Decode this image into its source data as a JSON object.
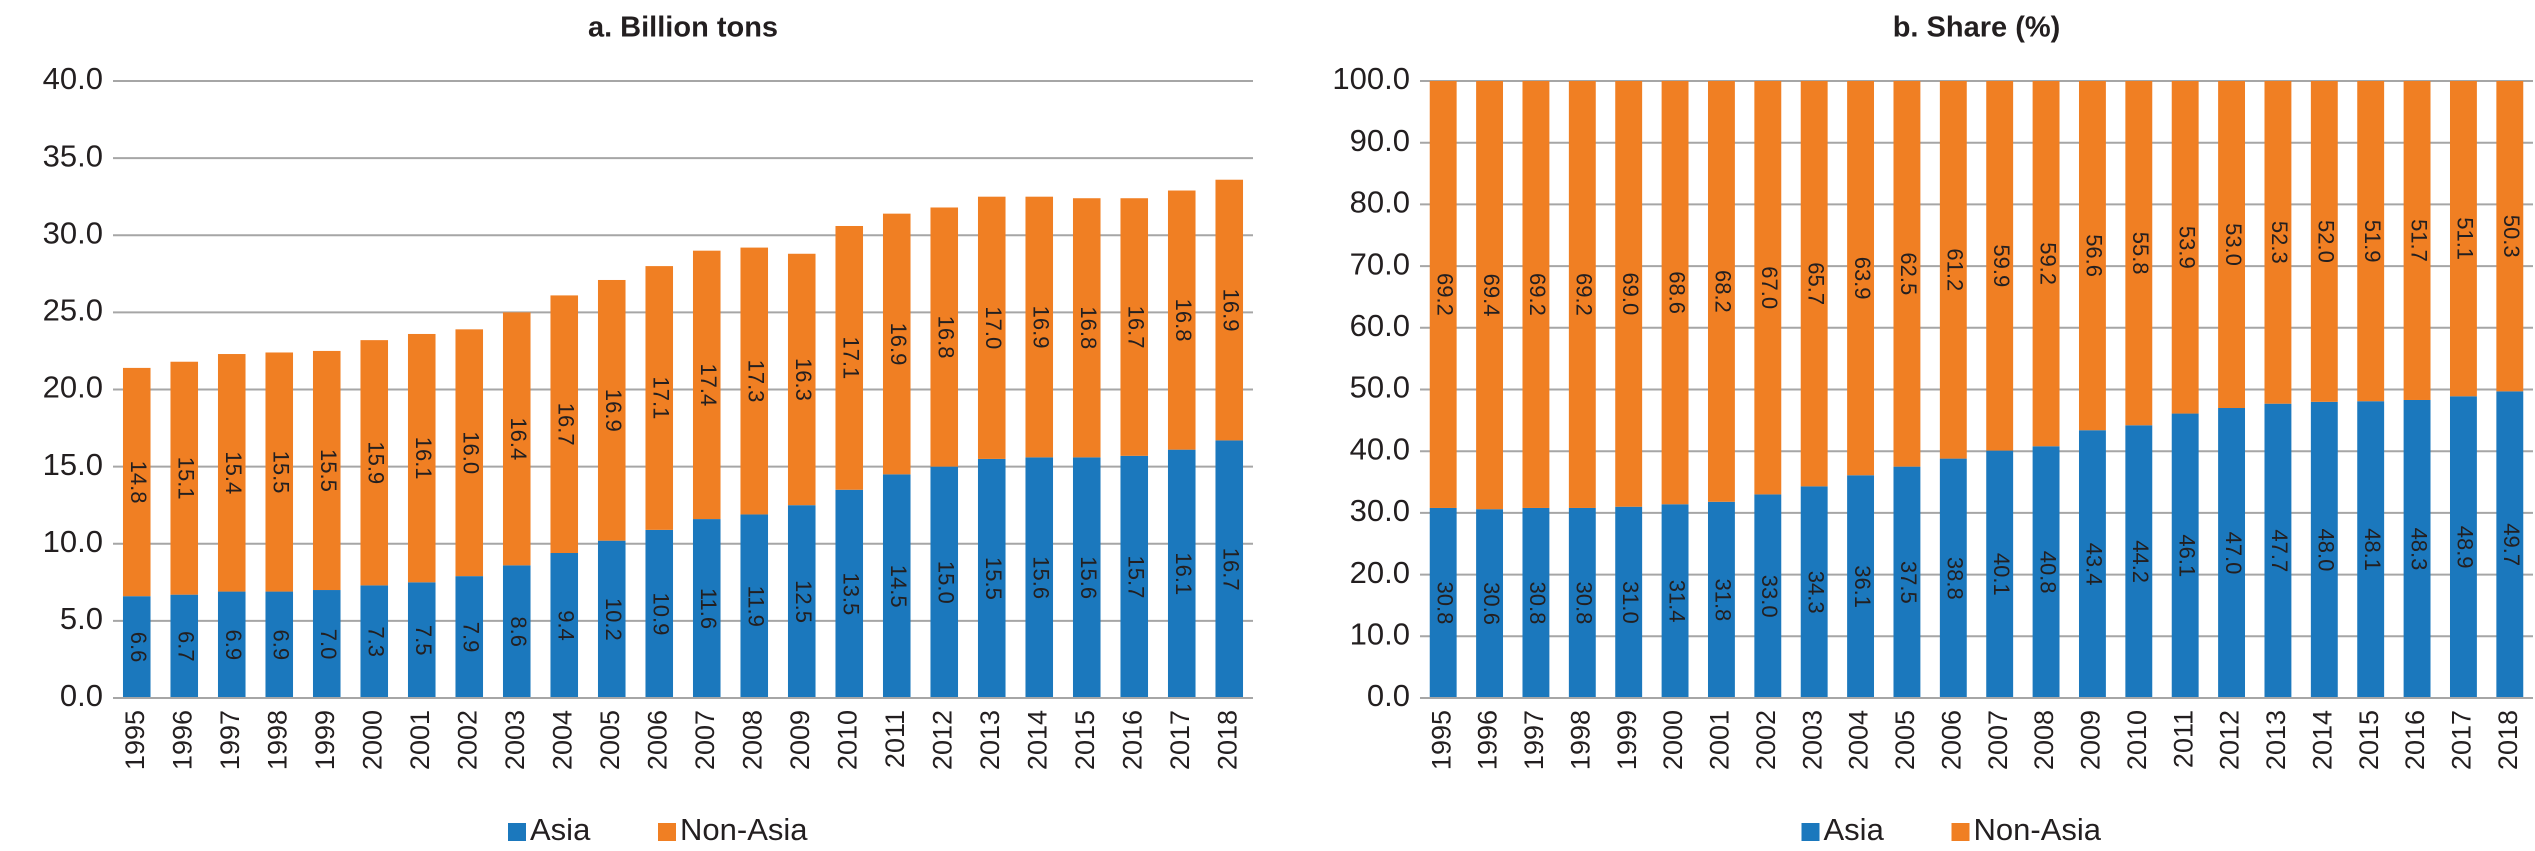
{
  "chart_data": [
    {
      "type": "stacked-bar",
      "title": "a. Billion tons",
      "categories": [
        "1995",
        "1996",
        "1997",
        "1998",
        "1999",
        "2000",
        "2001",
        "2002",
        "2003",
        "2004",
        "2005",
        "2006",
        "2007",
        "2008",
        "2009",
        "2010",
        "2011",
        "2012",
        "2013",
        "2014",
        "2015",
        "2016",
        "2017",
        "2018"
      ],
      "series": [
        {
          "name": "Asia",
          "color": "#1b78bd",
          "values": [
            6.6,
            6.7,
            6.9,
            6.9,
            7.0,
            7.3,
            7.5,
            7.9,
            8.6,
            9.4,
            10.2,
            10.9,
            11.6,
            11.9,
            12.5,
            13.5,
            14.5,
            15.0,
            15.5,
            15.6,
            15.6,
            15.7,
            16.1,
            16.7
          ],
          "value_labels": [
            "6.6",
            "6.7",
            "6.9",
            "6.9",
            "7.0",
            "7.3",
            "7.5",
            "7.9",
            "8.6",
            "9.4",
            "10.2",
            "10.9",
            "11.6",
            "11.9",
            "12.5",
            "13.5",
            "14.5",
            "15.0",
            "15.5",
            "15.6",
            "15.6",
            "15.7",
            "16.1",
            "16.7"
          ]
        },
        {
          "name": "Non-Asia",
          "color": "#f07f23",
          "values": [
            14.8,
            15.1,
            15.4,
            15.5,
            15.5,
            15.9,
            16.1,
            16.0,
            16.4,
            16.7,
            16.9,
            17.1,
            17.4,
            17.3,
            16.3,
            17.1,
            16.9,
            16.8,
            17.0,
            16.9,
            16.8,
            16.7,
            16.8,
            16.9
          ],
          "value_labels": [
            "14.8",
            "15.1",
            "15.4",
            "15.5",
            "15.5",
            "15.9",
            "16.1",
            "16.0",
            "16.4",
            "16.7",
            "16.9",
            "17.1",
            "17.4",
            "17.3",
            "16.3",
            "17.1",
            "16.9",
            "16.8",
            "17.0",
            "16.9",
            "16.8",
            "16.7",
            "16.8",
            "16.9"
          ]
        }
      ],
      "ylim": [
        0,
        40
      ],
      "yticks": [
        {
          "value": 0,
          "label": "0.0"
        },
        {
          "value": 5,
          "label": "5.0"
        },
        {
          "value": 10,
          "label": "10.0"
        },
        {
          "value": 15,
          "label": "15.0"
        },
        {
          "value": 20,
          "label": "20.0"
        },
        {
          "value": 25,
          "label": "25.0"
        },
        {
          "value": 30,
          "label": "30.0"
        },
        {
          "value": 35,
          "label": "35.0"
        },
        {
          "value": 40,
          "label": "40.0"
        }
      ],
      "grid": true,
      "legend": "bottom"
    },
    {
      "type": "stacked-bar",
      "title": "b. Share (%)",
      "categories": [
        "1995",
        "1996",
        "1997",
        "1998",
        "1999",
        "2000",
        "2001",
        "2002",
        "2003",
        "2004",
        "2005",
        "2006",
        "2007",
        "2008",
        "2009",
        "2010",
        "2011",
        "2012",
        "2013",
        "2014",
        "2015",
        "2016",
        "2017",
        "2018"
      ],
      "series": [
        {
          "name": "Asia",
          "color": "#1b78bd",
          "values": [
            30.8,
            30.6,
            30.8,
            30.8,
            31.0,
            31.4,
            31.8,
            33.0,
            34.3,
            36.1,
            37.5,
            38.8,
            40.1,
            40.8,
            43.4,
            44.2,
            46.1,
            47.0,
            47.7,
            48.0,
            48.1,
            48.3,
            48.9,
            49.7
          ],
          "value_labels": [
            "30.8",
            "30.6",
            "30.8",
            "30.8",
            "31.0",
            "31.4",
            "31.8",
            "33.0",
            "34.3",
            "36.1",
            "37.5",
            "38.8",
            "40.1",
            "40.8",
            "43.4",
            "44.2",
            "46.1",
            "47.0",
            "47.7",
            "48.0",
            "48.1",
            "48.3",
            "48.9",
            "49.7"
          ]
        },
        {
          "name": "Non-Asia",
          "color": "#f07f23",
          "values": [
            69.2,
            69.4,
            69.2,
            69.2,
            69.0,
            68.6,
            68.2,
            67.0,
            65.7,
            63.9,
            62.5,
            61.2,
            59.9,
            59.2,
            56.6,
            55.8,
            53.9,
            53.0,
            52.3,
            52.0,
            51.9,
            51.7,
            51.1,
            50.3
          ],
          "value_labels": [
            "69.2",
            "69.4",
            "69.2",
            "69.2",
            "69.0",
            "68.6",
            "68.2",
            "67.0",
            "65.7",
            "63.9",
            "62.5",
            "61.2",
            "59.9",
            "59.2",
            "56.6",
            "55.8",
            "53.9",
            "53.0",
            "52.3",
            "52.0",
            "51.9",
            "51.7",
            "51.1",
            "50.3"
          ]
        }
      ],
      "ylim": [
        0,
        100
      ],
      "yticks": [
        {
          "value": 0,
          "label": "0.0"
        },
        {
          "value": 10,
          "label": "10.0"
        },
        {
          "value": 20,
          "label": "20.0"
        },
        {
          "value": 30,
          "label": "30.0"
        },
        {
          "value": 40,
          "label": "40.0"
        },
        {
          "value": 50,
          "label": "50.0"
        },
        {
          "value": 60,
          "label": "60.0"
        },
        {
          "value": 70,
          "label": "70.0"
        },
        {
          "value": 80,
          "label": "80.0"
        },
        {
          "value": 90,
          "label": "90.0"
        },
        {
          "value": 100,
          "label": "100.0"
        }
      ],
      "grid": true,
      "legend": "bottom"
    }
  ]
}
